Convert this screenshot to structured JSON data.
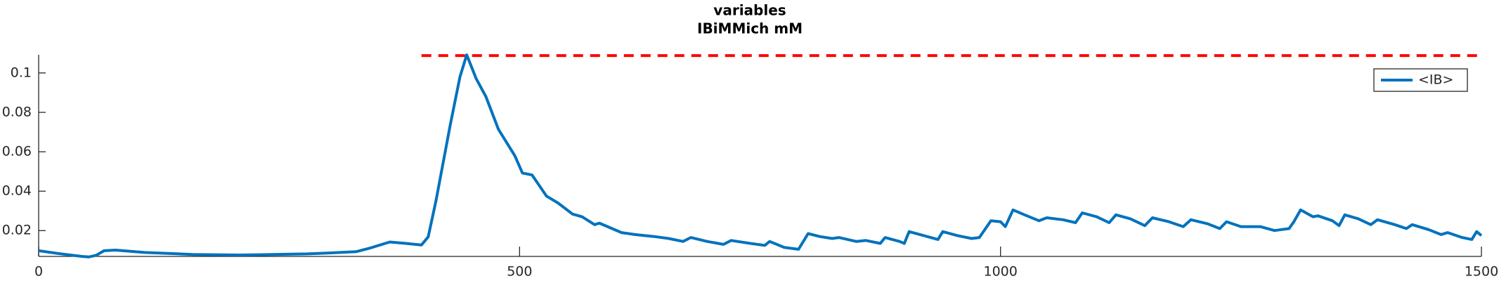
{
  "chart_data": {
    "type": "line",
    "title": "variables",
    "subtitle": "IBiMMich mM",
    "x": [
      0,
      20,
      45,
      52,
      60,
      68,
      80,
      110,
      160,
      209,
      279,
      300,
      330,
      345,
      365,
      380,
      398,
      405,
      413,
      428,
      438,
      445,
      455,
      465,
      478,
      495,
      503,
      513,
      528,
      540,
      555,
      565,
      578,
      583,
      606,
      620,
      640,
      655,
      670,
      678,
      695,
      712,
      720,
      740,
      755,
      760,
      775,
      790,
      795,
      800,
      812,
      825,
      832,
      850,
      860,
      875,
      880,
      895,
      900,
      905,
      920,
      935,
      940,
      955,
      970,
      978,
      990,
      1000,
      1005,
      1013,
      1025,
      1040,
      1048,
      1065,
      1078,
      1085,
      1100,
      1113,
      1120,
      1135,
      1150,
      1158,
      1175,
      1190,
      1198,
      1215,
      1228,
      1235,
      1250,
      1270,
      1285,
      1292,
      1300,
      1305,
      1312,
      1325,
      1330,
      1345,
      1352,
      1358,
      1372,
      1385,
      1392,
      1410,
      1422,
      1428,
      1445,
      1458,
      1465,
      1480,
      1490,
      1495,
      1500
    ],
    "series": [
      {
        "name": "<IB>",
        "color": "#0072bd",
        "values": [
          0.0098,
          0.0084,
          0.0069,
          0.0066,
          0.0075,
          0.0098,
          0.0101,
          0.0089,
          0.0079,
          0.0076,
          0.0082,
          0.0086,
          0.0093,
          0.0112,
          0.0142,
          0.0136,
          0.0127,
          0.0168,
          0.035,
          0.0738,
          0.098,
          0.1092,
          0.097,
          0.088,
          0.0714,
          0.058,
          0.0492,
          0.0482,
          0.0375,
          0.034,
          0.0284,
          0.027,
          0.023,
          0.0238,
          0.019,
          0.018,
          0.017,
          0.016,
          0.0145,
          0.0165,
          0.0145,
          0.013,
          0.015,
          0.0135,
          0.0125,
          0.0145,
          0.0115,
          0.0105,
          0.0145,
          0.0185,
          0.017,
          0.016,
          0.0165,
          0.0145,
          0.015,
          0.0135,
          0.0165,
          0.0145,
          0.0135,
          0.0195,
          0.0175,
          0.0155,
          0.0195,
          0.0175,
          0.016,
          0.0165,
          0.025,
          0.0245,
          0.022,
          0.0305,
          0.028,
          0.025,
          0.0265,
          0.0255,
          0.024,
          0.029,
          0.027,
          0.024,
          0.028,
          0.026,
          0.0225,
          0.0265,
          0.0245,
          0.022,
          0.0255,
          0.0235,
          0.021,
          0.0245,
          0.022,
          0.022,
          0.02,
          0.0205,
          0.021,
          0.0245,
          0.0305,
          0.027,
          0.0275,
          0.025,
          0.0225,
          0.028,
          0.026,
          0.023,
          0.0255,
          0.023,
          0.021,
          0.023,
          0.0205,
          0.018,
          0.019,
          0.0165,
          0.0155,
          0.0195,
          0.0175
        ]
      }
    ],
    "reference_line": {
      "y": 0.1088,
      "x": [
        398,
        1500
      ],
      "color": "#ff0000"
    },
    "xlim": [
      0,
      1500
    ],
    "xticks": [
      0,
      500,
      1000,
      1500
    ],
    "ylim": [
      0.0069,
      0.1092
    ],
    "yticks": [
      0.02,
      0.04,
      0.06,
      0.08,
      0.1
    ],
    "legend": "upper right"
  }
}
